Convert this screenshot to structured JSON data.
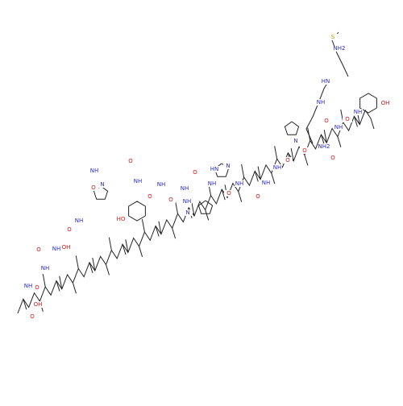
{
  "molecule": {
    "atom_labels": [
      "OH",
      "S",
      "NH2",
      "HN",
      "NH",
      "NH",
      "O",
      "NH",
      "O",
      "NH2",
      "O",
      "O",
      "N",
      "NH",
      "O",
      "NH",
      "O",
      "NH",
      "O",
      "NH",
      "N",
      "HN",
      "O",
      "NH",
      "N",
      "NH",
      "O",
      "NH",
      "O",
      "NH",
      "HO",
      "O",
      "N",
      "NH",
      "O",
      "NH",
      "OH",
      "O",
      "NH",
      "O",
      "NH",
      "O",
      "NH",
      "O",
      "OH"
    ]
  }
}
